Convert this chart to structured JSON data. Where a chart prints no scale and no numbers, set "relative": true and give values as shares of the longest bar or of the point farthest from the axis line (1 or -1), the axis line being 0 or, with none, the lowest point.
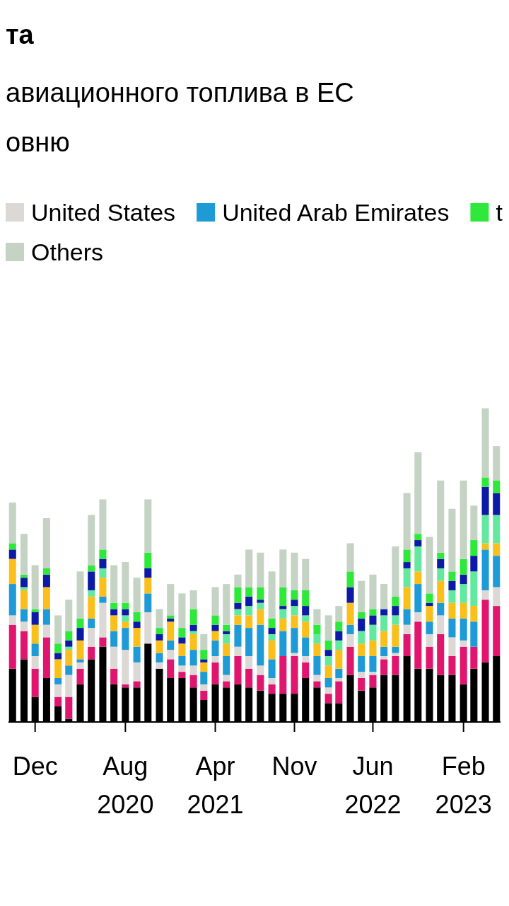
{
  "chart_data": {
    "type": "bar",
    "stacked": true,
    "relative": true,
    "title": "та",
    "subtitle": "авиационного топлива в ЕС\nовню",
    "legend": "top left",
    "x": [
      "2019-10",
      "2019-11",
      "2019-12",
      "2020-01",
      "2020-02",
      "2020-03",
      "2020-04",
      "2020-05",
      "2020-06",
      "2020-07",
      "2020-08",
      "2020-09",
      "2020-10",
      "2020-11",
      "2020-12",
      "2021-01",
      "2021-02",
      "2021-03",
      "2021-04",
      "2021-05",
      "2021-06",
      "2021-07",
      "2021-08",
      "2021-09",
      "2021-10",
      "2021-11",
      "2021-12",
      "2022-01",
      "2022-02",
      "2022-03",
      "2022-04",
      "2022-05",
      "2022-06",
      "2022-07",
      "2022-08",
      "2022-09",
      "2022-10",
      "2022-11",
      "2022-12",
      "2023-01",
      "2023-02",
      "2023-03",
      "2023-04",
      "2023-05"
    ],
    "xlim": [
      "2019-09-20",
      "2023-05-12"
    ],
    "xticks": [
      {
        "value": "2019-12",
        "label": "Dec"
      },
      {
        "value": "2020-08",
        "label": "Aug\n2020"
      },
      {
        "value": "2021-04",
        "label": "Apr\n2021"
      },
      {
        "value": "2021-11",
        "label": "Nov"
      },
      {
        "value": "2022-06",
        "label": "Jun\n2022"
      },
      {
        "value": "2023-02",
        "label": "Feb\n2023"
      }
    ],
    "series": [
      {
        "color": "#000000",
        "values": [
          0.17,
          0.2,
          0.08,
          0.14,
          0.05,
          0.01,
          0.12,
          0.2,
          0.24,
          0.12,
          0.11,
          0.11,
          0.25,
          0.17,
          0.14,
          0.14,
          0.11,
          0.07,
          0.12,
          0.11,
          0.12,
          0.11,
          0.1,
          0.09,
          0.09,
          0.09,
          0.14,
          0.11,
          0.06,
          0.06,
          0.15,
          0.1,
          0.11,
          0.15,
          0.15,
          0.21,
          0.17,
          0.17,
          0.15,
          0.15,
          0.12,
          0.17,
          0.19,
          0.21
        ]
      },
      {
        "color": "#e0156e",
        "values": [
          0.14,
          0.09,
          0.09,
          0.13,
          0.03,
          0.07,
          0.05,
          0.04,
          0.03,
          0.05,
          0.01,
          0.02,
          0,
          0,
          0.06,
          0.02,
          0.04,
          0.03,
          0.07,
          0.02,
          0.09,
          0.06,
          0.05,
          0.03,
          0.12,
          0.12,
          0.05,
          0.02,
          0.03,
          0.07,
          0.09,
          0.04,
          0.04,
          0.05,
          0.06,
          0.07,
          0.15,
          0.07,
          0.13,
          0.06,
          0.12,
          0.07,
          0.2,
          0.16
        ]
      },
      {
        "name": "United States",
        "color": "#dcd8d6",
        "values": [
          0.03,
          0.03,
          0.04,
          0.04,
          0.04,
          0.07,
          0.02,
          0.06,
          0.11,
          0.07,
          0.11,
          0.06,
          0.1,
          0.02,
          0.03,
          0.02,
          0.03,
          0.02,
          0.02,
          0.02,
          0.03,
          0.04,
          0.03,
          0.02,
          0,
          0.01,
          0.02,
          0.02,
          0.02,
          0.01,
          0.04,
          0.02,
          0.01,
          0.01,
          0.01,
          0.03,
          0.03,
          0.04,
          0.06,
          0.06,
          0.02,
          0,
          0.03,
          0.06
        ]
      },
      {
        "name": "United Arab Emirates",
        "color": "#1e9ad6",
        "values": [
          0.1,
          0.04,
          0.04,
          0.05,
          0.02,
          0.03,
          0.01,
          0.03,
          0.02,
          0.05,
          0.07,
          0.05,
          0.06,
          0.03,
          0.03,
          0.03,
          0.05,
          0.04,
          0.05,
          0.06,
          0.07,
          0.09,
          0.13,
          0.06,
          0.08,
          0.08,
          0.06,
          0.06,
          0.03,
          0.03,
          0.03,
          0.05,
          0.05,
          0.03,
          0.02,
          0.05,
          0.09,
          0.04,
          0.04,
          0.06,
          0.07,
          0.08,
          0.13,
          0.1
        ]
      },
      {
        "color": "#fbbf1c",
        "values": [
          0.08,
          0.06,
          0.06,
          0.07,
          0.06,
          0.05,
          0.06,
          0.07,
          0.06,
          0.05,
          0.02,
          0.06,
          0.05,
          0.04,
          0.06,
          0.04,
          0.05,
          0.03,
          0.03,
          0.04,
          0.03,
          0.04,
          0.05,
          0.06,
          0.04,
          0.04,
          0.05,
          0.04,
          0.04,
          0.06,
          0.07,
          0.04,
          0.05,
          0.05,
          0.07,
          0.07,
          0.04,
          0.05,
          0.07,
          0.05,
          0.05,
          0.05,
          0.02,
          0.04
        ]
      },
      {
        "color": "#63e8a0",
        "values": [
          0,
          0.01,
          0,
          0,
          0,
          0.01,
          0,
          0.02,
          0.03,
          0,
          0.02,
          0,
          0,
          0,
          0,
          0,
          0.01,
          0,
          0,
          0.03,
          0.02,
          0.03,
          0.02,
          0.02,
          0.03,
          0.03,
          0.02,
          0.03,
          0.03,
          0.03,
          0,
          0.04,
          0.05,
          0.05,
          0.03,
          0.06,
          0.08,
          0,
          0.04,
          0.04,
          0.06,
          0.11,
          0.09,
          0.09
        ]
      },
      {
        "color": "#0d1aa6",
        "values": [
          0.03,
          0.03,
          0.04,
          0.04,
          0.02,
          0.02,
          0.04,
          0.06,
          0.03,
          0.02,
          0.02,
          0.02,
          0.03,
          0.02,
          0.01,
          0.02,
          0.02,
          0.01,
          0.02,
          0.01,
          0.02,
          0.03,
          0.01,
          0.02,
          0.01,
          0.02,
          0.03,
          0,
          0.02,
          0.03,
          0.05,
          0.04,
          0.03,
          0.02,
          0.03,
          0.02,
          0.02,
          0.01,
          0.03,
          0.03,
          0.03,
          0.05,
          0.09,
          0.07
        ]
      },
      {
        "name": "t",
        "color": "#2ee83a",
        "values": [
          0.02,
          0.01,
          0.01,
          0.02,
          0.03,
          0.03,
          0.03,
          0.02,
          0.03,
          0.02,
          0.02,
          0.03,
          0.05,
          0.02,
          0.01,
          0.03,
          0.05,
          0.03,
          0.03,
          0.02,
          0.05,
          0.03,
          0.04,
          0.03,
          0.06,
          0.03,
          0.05,
          0.03,
          0.03,
          0.03,
          0.05,
          0.02,
          0.02,
          0,
          0.03,
          0.04,
          0.02,
          0.03,
          0.02,
          0.03,
          0.05,
          0.05,
          0.03,
          0.04
        ]
      },
      {
        "name": "Others",
        "color": "#c5d3c4",
        "values": [
          0.13,
          0.13,
          0.14,
          0.16,
          0.09,
          0.1,
          0.15,
          0.16,
          0.16,
          0.12,
          0.13,
          0.11,
          0.17,
          0.06,
          0.1,
          0.11,
          0.06,
          0.05,
          0.09,
          0.13,
          0.04,
          0.12,
          0.11,
          0.15,
          0.12,
          0.12,
          0.1,
          0.05,
          0.08,
          0.05,
          0.09,
          0.1,
          0.11,
          0.08,
          0.16,
          0.18,
          0.26,
          0.18,
          0.23,
          0.2,
          0.25,
          0.11,
          0.22,
          0.11
        ]
      }
    ]
  }
}
